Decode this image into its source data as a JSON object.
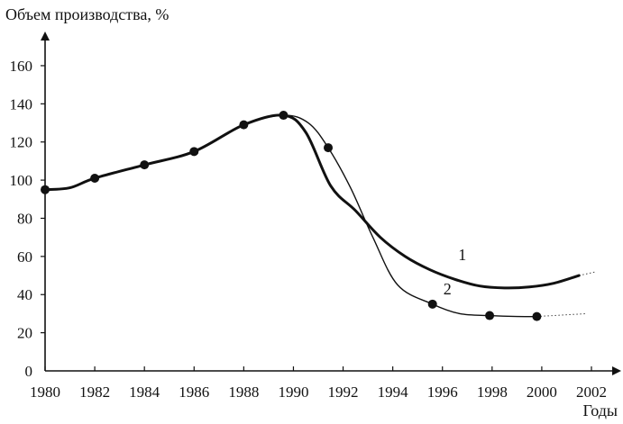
{
  "chart_data": {
    "type": "line",
    "ylabel": "Объем производства, %",
    "xlabel": "Годы",
    "xlim": [
      1980,
      2002
    ],
    "ylim": [
      0,
      170
    ],
    "xticks": [
      "1980",
      "1982",
      "1984",
      "1986",
      "1988",
      "1990",
      "1992",
      "1994",
      "1996",
      "1998",
      "2000",
      "2002"
    ],
    "yticks": [
      "0",
      "20",
      "40",
      "60",
      "80",
      "100",
      "120",
      "140",
      "160"
    ],
    "grid": false,
    "legend": "none",
    "series": [
      {
        "name": "1",
        "style": "thick",
        "x": [
          1980,
          1981,
          1982,
          1984,
          1986,
          1988,
          1989.6,
          1990.5,
          1991.5,
          1992.5,
          1993.5,
          1994.5,
          1995.5,
          1996.5,
          1997.5,
          1998.5,
          1999.5,
          2000.5,
          2001.5
        ],
        "y": [
          95,
          96,
          101,
          108,
          115,
          129,
          134,
          125,
          97,
          84,
          70,
          60,
          53,
          48,
          44.5,
          43.5,
          44,
          46,
          50
        ],
        "extension": {
          "x": [
            2001.5,
            2002.2
          ],
          "y": [
            50,
            52
          ]
        }
      },
      {
        "name": "2",
        "style": "thin",
        "x": [
          1980,
          1981,
          1982,
          1984,
          1986,
          1988,
          1989.6,
          1990.6,
          1991.4,
          1992.3,
          1993.2,
          1994.2,
          1995.6,
          1996.7,
          1997.9,
          1999,
          1999.8
        ],
        "y": [
          95,
          96,
          101,
          108,
          115,
          129,
          134,
          130,
          117,
          96,
          70,
          45,
          35,
          30,
          29,
          28.5,
          28.5
        ],
        "markers": {
          "x": [
            1980,
            1982,
            1984,
            1986,
            1988,
            1989.6,
            1991.4,
            1995.6,
            1997.9,
            1999.8
          ],
          "y": [
            95,
            101,
            108,
            115,
            129,
            134,
            117,
            35,
            29,
            28.5
          ]
        },
        "extension": {
          "x": [
            1999.8,
            2001.8
          ],
          "y": [
            28.5,
            30
          ]
        }
      }
    ],
    "series_labels": [
      {
        "text": "1",
        "x": 1996.8,
        "y": 58
      },
      {
        "text": "2",
        "x": 1996.2,
        "y": 40
      }
    ]
  }
}
